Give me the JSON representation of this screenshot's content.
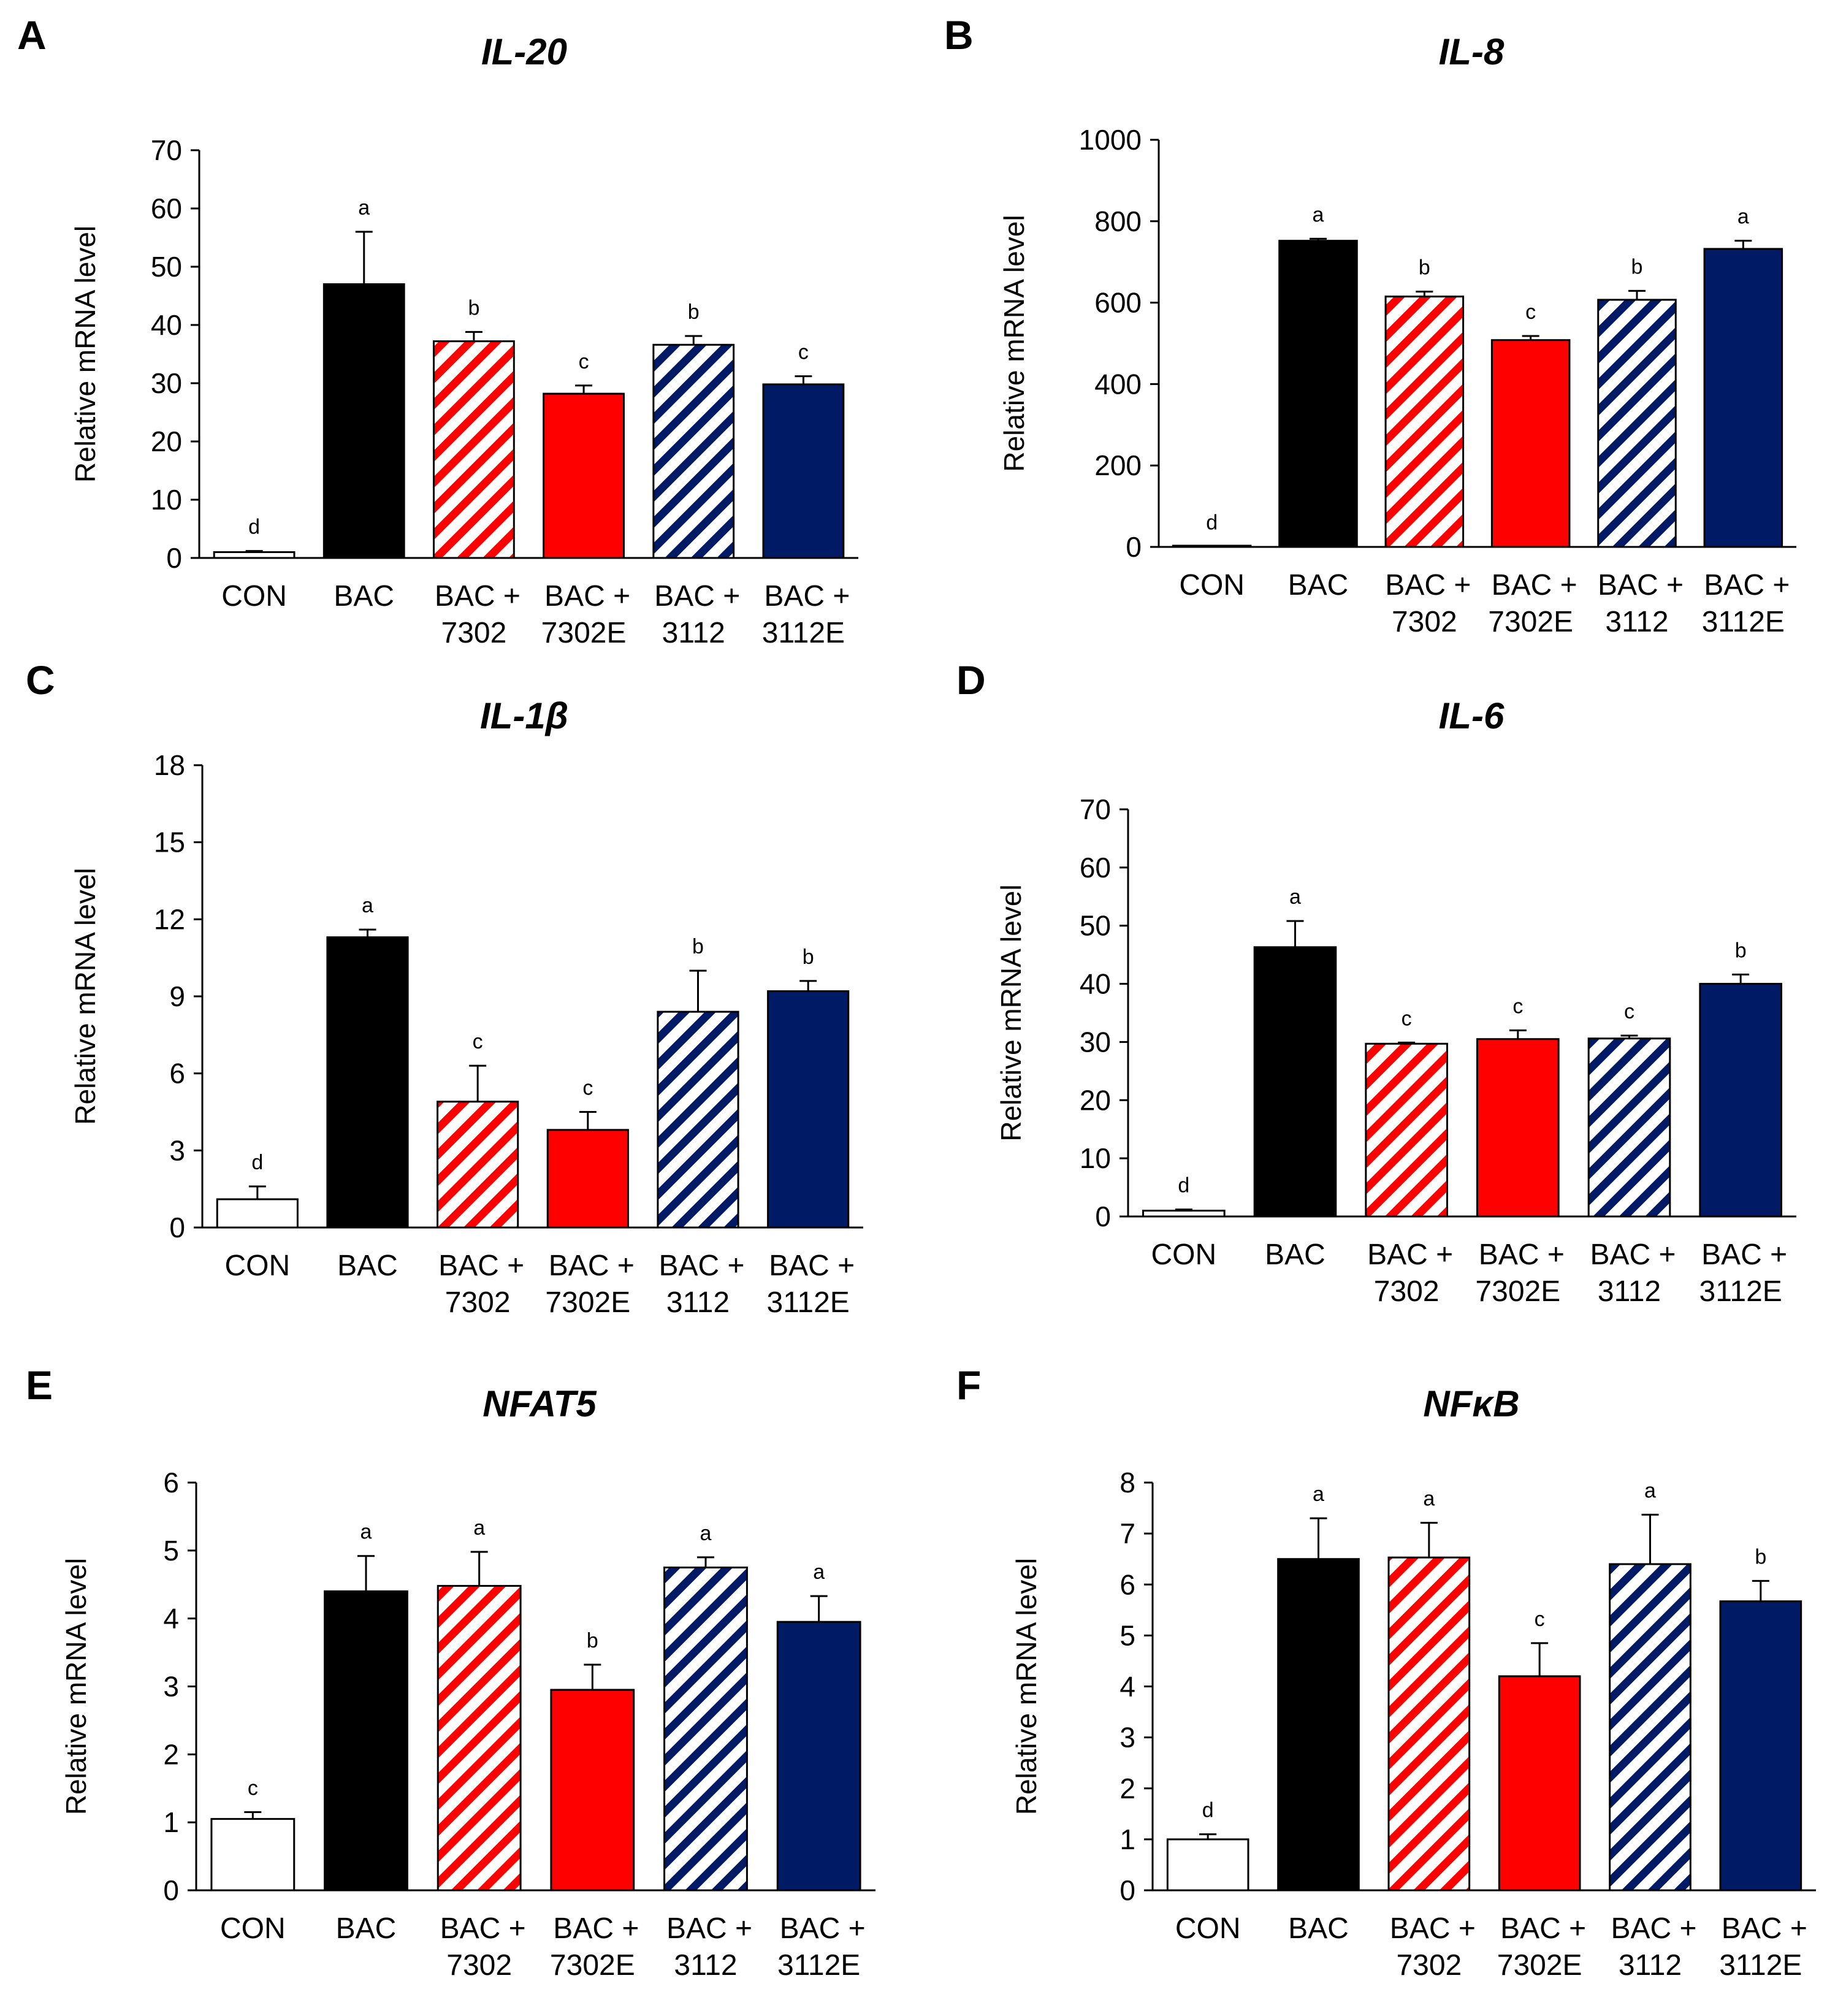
{
  "figure": {
    "colors": {
      "white": "#ffffff",
      "black": "#000000",
      "red": "#ff0000",
      "navy": "#001a66"
    },
    "bar_styles": [
      "white",
      "black",
      "red-hatch",
      "red",
      "navy-hatch",
      "navy"
    ]
  },
  "chart_data": [
    {
      "panel": "A",
      "type": "bar",
      "title": "IL-20",
      "xlabel": "",
      "ylabel": "Relative mRNA level",
      "ylim": [
        0,
        70
      ],
      "yticks": [
        0,
        10,
        20,
        30,
        40,
        50,
        60,
        70
      ],
      "grid": false,
      "categories": [
        [
          "CON"
        ],
        [
          "BAC"
        ],
        [
          "BAC +",
          "7302"
        ],
        [
          "BAC +",
          "7302E"
        ],
        [
          "BAC +",
          "3112"
        ],
        [
          "BAC +",
          "3112E"
        ]
      ],
      "values": [
        1,
        47,
        37.2,
        28.2,
        36.6,
        29.8
      ],
      "errors": [
        0.2,
        9,
        1.6,
        1.4,
        1.5,
        1.4
      ],
      "significance": [
        "d",
        "a",
        "b",
        "c",
        "b",
        "c"
      ]
    },
    {
      "panel": "B",
      "type": "bar",
      "title": "IL-8",
      "xlabel": "",
      "ylabel": "Relative mRNA level",
      "ylim": [
        0,
        1000
      ],
      "yticks": [
        0,
        200,
        400,
        600,
        800,
        1000
      ],
      "grid": false,
      "categories": [
        [
          "CON"
        ],
        [
          "BAC"
        ],
        [
          "BAC +",
          "7302"
        ],
        [
          "BAC +",
          "7302E"
        ],
        [
          "BAC +",
          "3112"
        ],
        [
          "BAC +",
          "3112E"
        ]
      ],
      "values": [
        1,
        752,
        615,
        508,
        607,
        732
      ],
      "errors": [
        0,
        5,
        12,
        10,
        22,
        20
      ],
      "significance": [
        "d",
        "a",
        "b",
        "c",
        "b",
        "a"
      ]
    },
    {
      "panel": "C",
      "type": "bar",
      "title": "IL-1β",
      "xlabel": "",
      "ylabel": "Relative mRNA level",
      "ylim": [
        0,
        18
      ],
      "yticks": [
        0,
        3,
        6,
        9,
        12,
        15,
        18
      ],
      "grid": false,
      "categories": [
        [
          "CON"
        ],
        [
          "BAC"
        ],
        [
          "BAC +",
          "7302"
        ],
        [
          "BAC +",
          "7302E"
        ],
        [
          "BAC +",
          "3112"
        ],
        [
          "BAC +",
          "3112E"
        ]
      ],
      "values": [
        1.1,
        11.3,
        4.9,
        3.8,
        8.4,
        9.2
      ],
      "errors": [
        0.5,
        0.3,
        1.4,
        0.7,
        1.6,
        0.4
      ],
      "significance": [
        "d",
        "a",
        "c",
        "c",
        "b",
        "b"
      ]
    },
    {
      "panel": "D",
      "type": "bar",
      "title": "IL-6",
      "xlabel": "",
      "ylabel": "Relative mRNA level",
      "ylim": [
        0,
        70
      ],
      "yticks": [
        0,
        10,
        20,
        30,
        40,
        50,
        60,
        70
      ],
      "grid": false,
      "categories": [
        [
          "CON"
        ],
        [
          "BAC"
        ],
        [
          "BAC +",
          "7302"
        ],
        [
          "BAC +",
          "7302E"
        ],
        [
          "BAC +",
          "3112"
        ],
        [
          "BAC +",
          "3112E"
        ]
      ],
      "values": [
        1,
        46.3,
        29.7,
        30.5,
        30.6,
        40
      ],
      "errors": [
        0.2,
        4.5,
        0.2,
        1.5,
        0.5,
        1.6
      ],
      "significance": [
        "d",
        "a",
        "c",
        "c",
        "c",
        "b"
      ]
    },
    {
      "panel": "E",
      "type": "bar",
      "title": "NFAT5",
      "xlabel": "",
      "ylabel": "Relative mRNA level",
      "ylim": [
        0,
        6
      ],
      "yticks": [
        0,
        1,
        2,
        3,
        4,
        5,
        6
      ],
      "grid": false,
      "categories": [
        [
          "CON"
        ],
        [
          "BAC"
        ],
        [
          "BAC +",
          "7302"
        ],
        [
          "BAC +",
          "7302E"
        ],
        [
          "BAC +",
          "3112"
        ],
        [
          "BAC +",
          "3112E"
        ]
      ],
      "values": [
        1.05,
        4.4,
        4.48,
        2.95,
        4.75,
        3.95
      ],
      "errors": [
        0.1,
        0.52,
        0.5,
        0.37,
        0.15,
        0.38
      ],
      "significance": [
        "c",
        "a",
        "a",
        "b",
        "a",
        "a"
      ]
    },
    {
      "panel": "F",
      "type": "bar",
      "title": "NFκB",
      "xlabel": "",
      "ylabel": "Relative mRNA level",
      "ylim": [
        0,
        8
      ],
      "yticks": [
        0,
        1,
        2,
        3,
        4,
        5,
        6,
        7,
        8
      ],
      "grid": false,
      "categories": [
        [
          "CON"
        ],
        [
          "BAC"
        ],
        [
          "BAC +",
          "7302"
        ],
        [
          "BAC +",
          "7302E"
        ],
        [
          "BAC +",
          "3112"
        ],
        [
          "BAC +",
          "3112E"
        ]
      ],
      "values": [
        1,
        6.5,
        6.53,
        4.2,
        6.4,
        5.67
      ],
      "errors": [
        0.1,
        0.8,
        0.68,
        0.65,
        0.97,
        0.4
      ],
      "significance": [
        "d",
        "a",
        "a",
        "c",
        "a",
        "b"
      ]
    }
  ]
}
